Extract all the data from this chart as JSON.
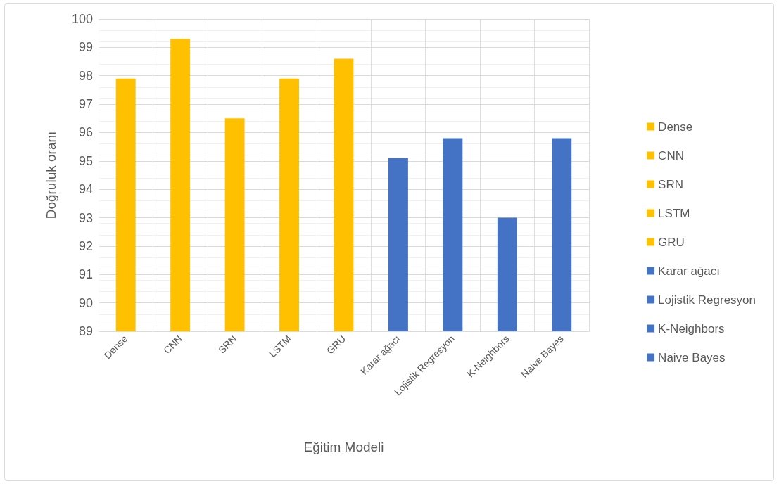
{
  "chart_data": {
    "type": "bar",
    "xlabel": "Eğitim Modeli",
    "ylabel": "Doğruluk oranı",
    "categories": [
      "Dense",
      "CNN",
      "SRN",
      "LSTM",
      "GRU",
      "Karar ağacı",
      "Lojistik Regresyon",
      "K-Neighbors",
      "Naive Bayes"
    ],
    "series": [
      {
        "name": "Dense",
        "color": "#ffc000",
        "values": [
          97.9,
          null,
          null,
          null,
          null,
          null,
          null,
          null,
          null
        ]
      },
      {
        "name": "CNN",
        "color": "#ffc000",
        "values": [
          null,
          99.3,
          null,
          null,
          null,
          null,
          null,
          null,
          null
        ]
      },
      {
        "name": "SRN",
        "color": "#ffc000",
        "values": [
          null,
          null,
          96.5,
          null,
          null,
          null,
          null,
          null,
          null
        ]
      },
      {
        "name": "LSTM",
        "color": "#ffc000",
        "values": [
          null,
          null,
          null,
          97.9,
          null,
          null,
          null,
          null,
          null
        ]
      },
      {
        "name": "GRU",
        "color": "#ffc000",
        "values": [
          null,
          null,
          null,
          null,
          98.6,
          null,
          null,
          null,
          null
        ]
      },
      {
        "name": "Karar ağacı",
        "color": "#4472c4",
        "values": [
          null,
          null,
          null,
          null,
          null,
          95.1,
          null,
          null,
          null
        ]
      },
      {
        "name": "Lojistik Regresyon",
        "color": "#4472c4",
        "values": [
          null,
          null,
          null,
          null,
          null,
          null,
          95.8,
          null,
          null
        ]
      },
      {
        "name": "K-Neighbors",
        "color": "#4472c4",
        "values": [
          null,
          null,
          null,
          null,
          null,
          null,
          null,
          93,
          null
        ]
      },
      {
        "name": "Naive Bayes",
        "color": "#4472c4",
        "values": [
          null,
          null,
          null,
          null,
          null,
          null,
          null,
          null,
          95.8
        ]
      }
    ],
    "ylim": [
      89,
      100
    ],
    "yticks": [
      89,
      90,
      91,
      92,
      93,
      94,
      95,
      96,
      97,
      98,
      99,
      100
    ],
    "grid": true,
    "legend": "right"
  }
}
